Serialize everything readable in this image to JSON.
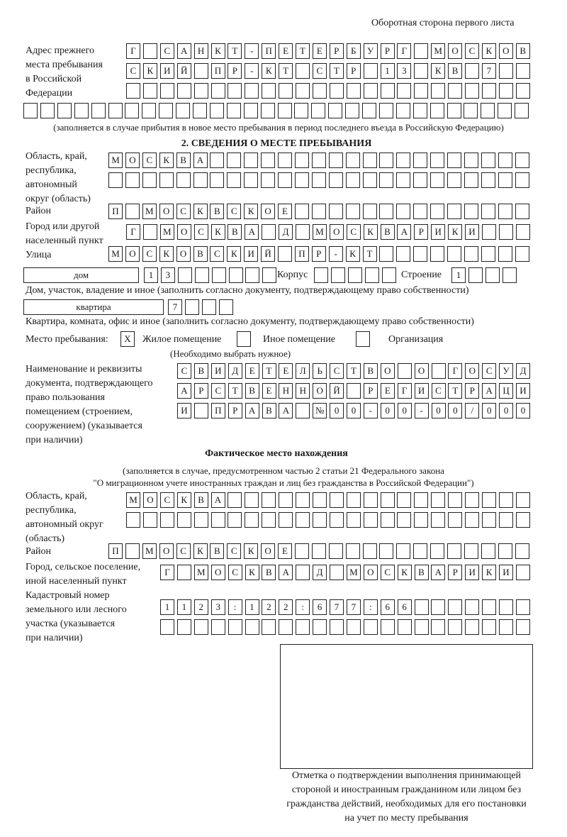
{
  "header": {
    "page_side": "Оборотная сторона первого листа"
  },
  "previous_address": {
    "label": "Адрес прежнего\nместа пребывания\nв Российской\nФедерации",
    "rows": [
      [
        "Г",
        "",
        "С",
        "А",
        "Н",
        "К",
        "Т",
        "-",
        "П",
        "Е",
        "Т",
        "Е",
        "Р",
        "Б",
        "У",
        "Р",
        "Г",
        "",
        "М",
        "О",
        "С",
        "К",
        "О",
        "В"
      ],
      [
        "С",
        "К",
        "И",
        "Й",
        "",
        "П",
        "Р",
        "-",
        "К",
        "Т",
        "",
        "С",
        "Т",
        "Р",
        "",
        "1",
        "3",
        "",
        "К",
        "В",
        "",
        "7",
        "",
        ""
      ],
      [
        "",
        "",
        "",
        "",
        "",
        "",
        "",
        "",
        "",
        "",
        "",
        "",
        "",
        "",
        "",
        "",
        "",
        "",
        "",
        "",
        "",
        "",
        "",
        ""
      ],
      [
        "",
        "",
        "",
        "",
        "",
        "",
        "",
        "",
        "",
        "",
        "",
        "",
        "",
        "",
        "",
        "",
        "",
        "",
        "",
        "",
        "",
        "",
        "",
        "",
        "",
        "",
        "",
        "",
        "",
        ""
      ]
    ],
    "note": "(заполняется в случае прибытия в новое место пребывания в период последнего въезда в Российскую Федерацию)"
  },
  "stay_place": {
    "title": "2. СВЕДЕНИЯ О МЕСТЕ ПРЕБЫВАНИЯ",
    "region_label": "Область, край,\nреспублика,\nавтономный\nокруг (область)",
    "region_rows": [
      [
        "М",
        "О",
        "С",
        "К",
        "В",
        "А",
        "",
        "",
        "",
        "",
        "",
        "",
        "",
        "",
        "",
        "",
        "",
        "",
        "",
        "",
        "",
        "",
        "",
        "",
        ""
      ],
      [
        "",
        "",
        "",
        "",
        "",
        "",
        "",
        "",
        "",
        "",
        "",
        "",
        "",
        "",
        "",
        "",
        "",
        "",
        "",
        "",
        "",
        "",
        "",
        "",
        ""
      ]
    ],
    "district_label": "Район",
    "district_row": [
      "П",
      "",
      "М",
      "О",
      "С",
      "К",
      "В",
      "С",
      "К",
      "О",
      "Е",
      "",
      "",
      "",
      "",
      "",
      "",
      "",
      "",
      "",
      "",
      "",
      "",
      "",
      ""
    ],
    "city_label": "Город или другой\nнаселенный пункт",
    "city_row": [
      "Г",
      "",
      "М",
      "О",
      "С",
      "К",
      "В",
      "А",
      "",
      "Д",
      "",
      "М",
      "О",
      "С",
      "К",
      "В",
      "А",
      "Р",
      "И",
      "К",
      "И",
      "",
      "",
      ""
    ],
    "street_label": "Улица",
    "street_row": [
      "М",
      "О",
      "С",
      "К",
      "О",
      "В",
      "С",
      "К",
      "И",
      "Й",
      "",
      "П",
      "Р",
      "-",
      "К",
      "Т",
      "",
      "",
      "",
      "",
      "",
      "",
      "",
      "",
      ""
    ],
    "house_type": "дом",
    "house_cells": [
      "1",
      "3",
      "",
      "",
      "",
      "",
      "",
      ""
    ],
    "building_label": "Корпус",
    "building_cells": [
      "",
      "",
      "",
      "",
      ""
    ],
    "structure_label": "Строение",
    "structure_cells": [
      "1",
      "",
      "",
      ""
    ],
    "house_note": "Дом, участок, владение и иное (заполнить согласно документу, подтверждающему право собственности)",
    "apartment_type": "квартира",
    "apartment_cells": [
      "7",
      "",
      "",
      ""
    ],
    "apartment_note": "Квартира, комната, офис и иное (заполнить согласно документу, подтверждающему право собственности)",
    "place_label": "Место пребывания:",
    "options": [
      {
        "label": "Жилое помещение",
        "mark": "X"
      },
      {
        "label": "Иное помещение",
        "mark": ""
      },
      {
        "label": "Организация",
        "mark": ""
      }
    ],
    "choose_note": "(Необходимо выбрать нужное)",
    "doc_label": "Наименование и реквизиты\nдокумента, подтверждающего\nправо пользования\nпомещением (строением,\nсооружением) (указывается\nпри наличии)",
    "doc_rows": [
      [
        "С",
        "В",
        "И",
        "Д",
        "Е",
        "Т",
        "Е",
        "Л",
        "Ь",
        "С",
        "Т",
        "В",
        "О",
        "",
        "О",
        "",
        "Г",
        "О",
        "С",
        "У",
        "Д"
      ],
      [
        "А",
        "Р",
        "С",
        "Т",
        "В",
        "Е",
        "Н",
        "Н",
        "О",
        "Й",
        "",
        "Р",
        "Е",
        "Г",
        "И",
        "С",
        "Т",
        "Р",
        "А",
        "Ц",
        "И"
      ],
      [
        "И",
        "",
        "П",
        "Р",
        "А",
        "В",
        "А",
        "",
        "№",
        "0",
        "0",
        "-",
        "0",
        "0",
        "-",
        "0",
        "0",
        "/",
        "0",
        "0",
        "0"
      ]
    ]
  },
  "actual_place": {
    "title": "Фактическое место нахождения",
    "note1": "(заполняется в случае, предусмотренном частью 2 статьи 21 Федерального закона",
    "note2": "\"О миграционном учете иностранных граждан и лиц без гражданства в Российской Федерации\")",
    "region_label": "Область, край,\nреспублика,\nавтономный округ\n(область)",
    "region_rows": [
      [
        "М",
        "О",
        "С",
        "К",
        "В",
        "А",
        "",
        "",
        "",
        "",
        "",
        "",
        "",
        "",
        "",
        "",
        "",
        "",
        "",
        "",
        "",
        "",
        "",
        ""
      ],
      [
        "",
        "",
        "",
        "",
        "",
        "",
        "",
        "",
        "",
        "",
        "",
        "",
        "",
        "",
        "",
        "",
        "",
        "",
        "",
        "",
        "",
        "",
        "",
        ""
      ]
    ],
    "district_label": "Район",
    "district_row": [
      "П",
      "",
      "М",
      "О",
      "С",
      "К",
      "В",
      "С",
      "К",
      "О",
      "Е",
      "",
      "",
      "",
      "",
      "",
      "",
      "",
      "",
      "",
      "",
      "",
      "",
      "",
      ""
    ],
    "city_label": "Город, сельское поселение,\nиной населенный пункт",
    "city_row": [
      "Г",
      "",
      "М",
      "О",
      "С",
      "К",
      "В",
      "А",
      "",
      "Д",
      "",
      "М",
      "О",
      "С",
      "К",
      "В",
      "А",
      "Р",
      "И",
      "К",
      "И",
      ""
    ],
    "cadastral_label": "Кадастровый номер\nземельного или лесного\nучастка (указывается\nпри наличии)",
    "cadastral_rows": [
      [
        "1",
        "1",
        "2",
        "3",
        ":",
        "1",
        "2",
        "2",
        ":",
        "6",
        "7",
        "7",
        ":",
        "6",
        "6",
        "",
        "",
        "",
        "",
        "",
        "",
        ""
      ],
      [
        "",
        "",
        "",
        "",
        "",
        "",
        "",
        "",
        "",
        "",
        "",
        "",
        "",
        "",
        "",
        "",
        "",
        "",
        "",
        "",
        "",
        ""
      ]
    ]
  },
  "confirmation": {
    "caption": "Отметка о подтверждении выполнения принимающей\nстороной и иностранным гражданином или лицом без\nгражданства действий, необходимых для его постановки\nна учет по месту пребывания"
  }
}
